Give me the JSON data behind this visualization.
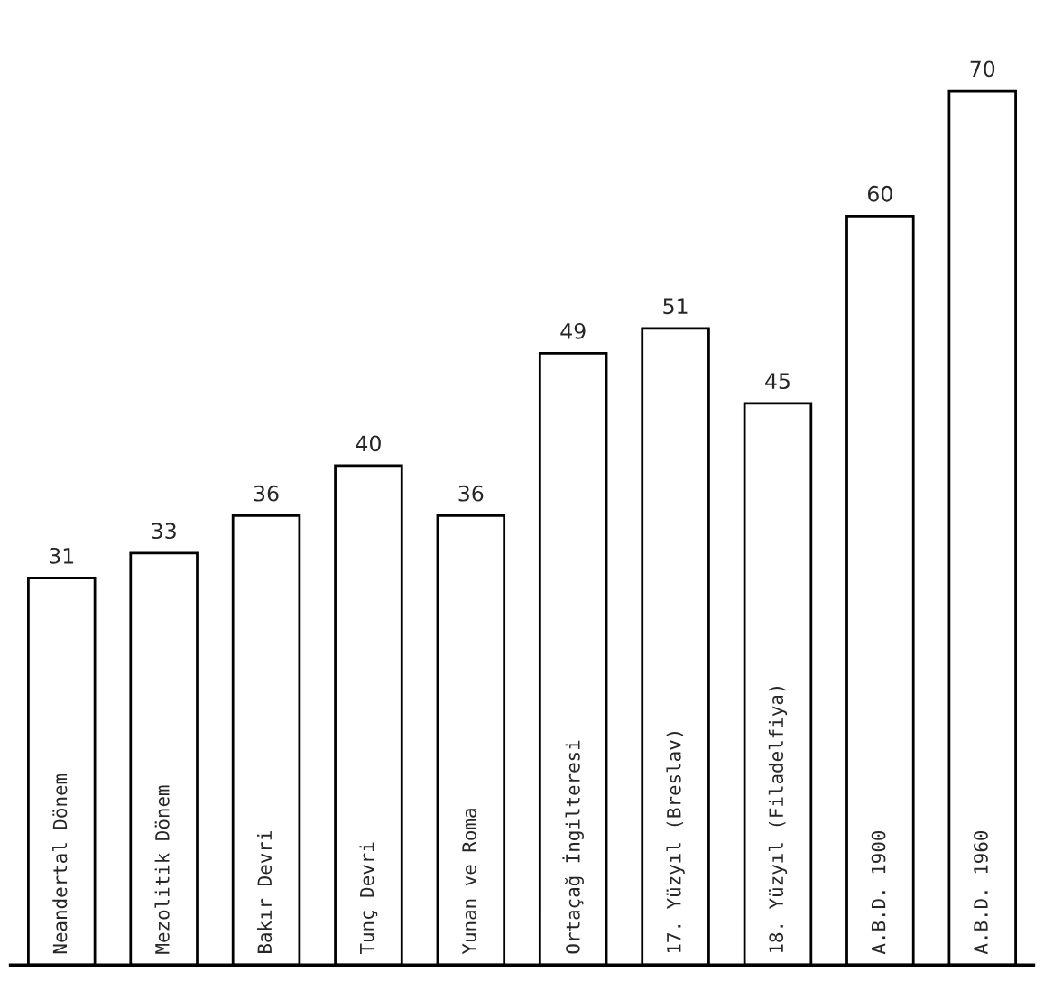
{
  "chart_data": {
    "type": "bar",
    "categories": [
      "Neandertal Dönem",
      "Mezolitik Dönem",
      "Bakır Devri",
      "Tunç Devri",
      "Yunan ve Roma",
      "Ortaçağ İngilteresi",
      "17. Yüzyıl (Breslav)",
      "18. Yüzyıl (Filadelfiya)",
      "A.B.D. 1900",
      "A.B.D. 1960"
    ],
    "values": [
      31,
      33,
      36,
      40,
      36,
      49,
      51,
      45,
      60,
      70
    ],
    "color": "#ffffff",
    "data_labels": true
  }
}
